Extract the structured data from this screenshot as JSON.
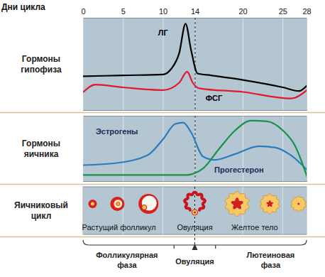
{
  "chart_data": [
    {
      "type": "line",
      "title": "Гормоны гипофиза",
      "xlabel": "Дни цикла",
      "xlim": [
        0,
        28
      ],
      "xticks": [
        0,
        5,
        10,
        14,
        20,
        25,
        28
      ],
      "ylim": [
        0,
        100
      ],
      "grid": true,
      "tick_labels": "x",
      "vlines": [
        14
      ],
      "series": [
        {
          "name": "ЛГ",
          "color": "#000000",
          "x": [
            0,
            5,
            10,
            11,
            12,
            12.8,
            13.5,
            14.3,
            16,
            20,
            25,
            27,
            28
          ],
          "values": [
            37,
            38,
            39,
            45,
            62,
            94,
            65,
            40,
            38,
            33,
            25,
            21,
            27
          ]
        },
        {
          "name": "ФСГ",
          "color": "#e0192e",
          "x": [
            0,
            1.5,
            5,
            10,
            12,
            13,
            13.7,
            14.5,
            20,
            26,
            28
          ],
          "values": [
            20,
            28,
            25,
            22,
            30,
            42,
            30,
            24,
            20,
            13,
            22
          ]
        }
      ]
    },
    {
      "type": "line",
      "title": "Гормоны яичника",
      "xlim": [
        0,
        28
      ],
      "xticks": [
        0,
        5,
        10,
        14,
        20,
        25,
        28
      ],
      "ylim": [
        0,
        100
      ],
      "grid": true,
      "tick_labels": false,
      "vlines": [
        14
      ],
      "series": [
        {
          "name": "Эстрогены",
          "color": "#2b7bbf",
          "x": [
            0,
            4,
            8,
            10,
            11.5,
            12.5,
            13.5,
            15,
            16.5,
            19,
            22,
            24,
            26,
            28
          ],
          "values": [
            25,
            28,
            40,
            65,
            88,
            90,
            75,
            38,
            33,
            42,
            54,
            52,
            40,
            18
          ]
        },
        {
          "name": "Прогестерон",
          "color": "#17924a",
          "x": [
            0,
            13,
            14,
            15,
            17,
            19,
            21,
            23,
            25,
            26.5,
            28
          ],
          "values": [
            10,
            10,
            13,
            20,
            50,
            78,
            93,
            92,
            78,
            55,
            8
          ]
        }
      ]
    }
  ],
  "ovarian_cycle": {
    "title": "Яичниковый цикл",
    "stages": [
      "Растущий фолликул",
      "Овуляция",
      "Желтое тело"
    ]
  },
  "phases": [
    [
      "Фолликулярная",
      "фаза"
    ],
    [
      "Овуляция"
    ],
    [
      "Лютеиновая",
      "фаза"
    ]
  ]
}
